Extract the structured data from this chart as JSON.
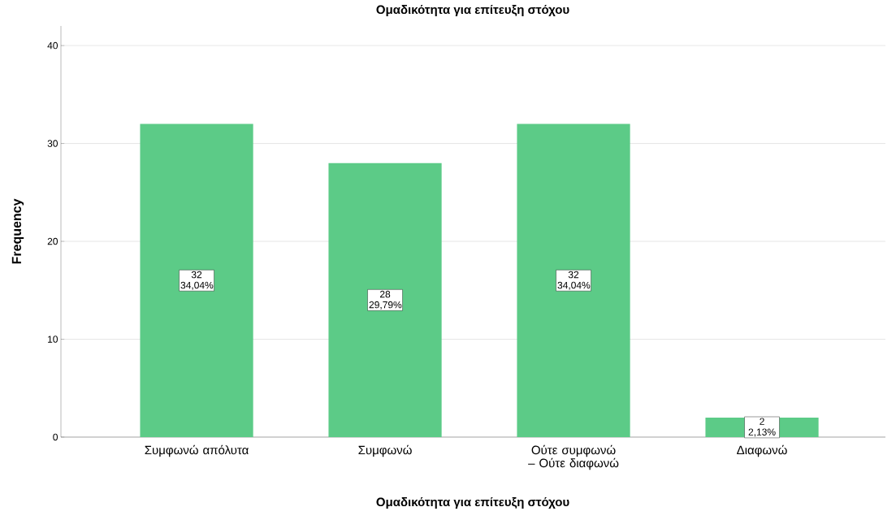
{
  "chart_data": {
    "type": "bar",
    "title": "Ομαδικότητα για επίτευξη στόχου",
    "xlabel": "Ομαδικότητα για επίτευξη στόχου",
    "ylabel": "Frequency",
    "categories": [
      "Συμφωνώ απόλυτα",
      "Συμφωνώ",
      "Ούτε συμφωνώ – Ούτε διαφωνώ",
      "Διαφωνώ"
    ],
    "values": [
      32,
      28,
      32,
      2
    ],
    "color": "#5ccb87",
    "value_labels": [
      "32 34,04%",
      "28 29,79%",
      "32 34,04%",
      "2 2,13%"
    ],
    "ylim": [
      0,
      42
    ],
    "yticks": [
      0,
      10,
      20,
      30,
      40
    ],
    "grid": "y"
  }
}
